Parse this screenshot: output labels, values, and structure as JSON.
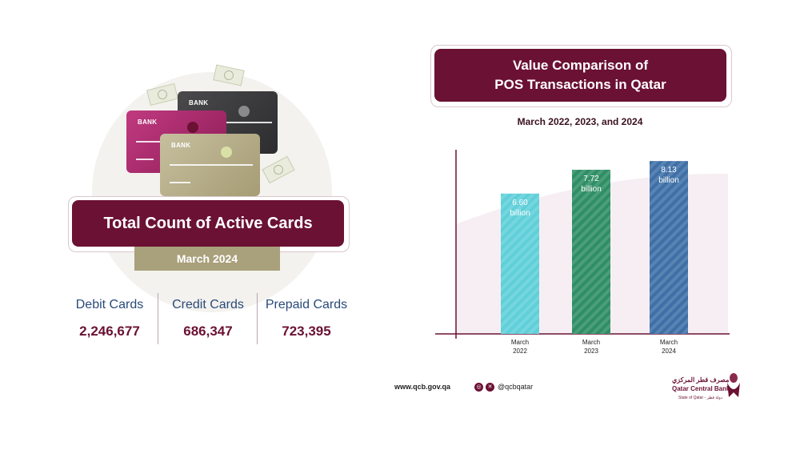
{
  "left_panel": {
    "cards": [
      {
        "label": "BANK",
        "color": "#3b3b3d"
      },
      {
        "label": "BANK",
        "color": "#a8286c"
      },
      {
        "label": "BANK",
        "color": "#b5ad8a"
      }
    ],
    "title": "Total Count of Active Cards",
    "date": "March 2024",
    "stats": [
      {
        "label": "Debit Cards",
        "value": "2,246,677"
      },
      {
        "label": "Credit Cards",
        "value": "686,347"
      },
      {
        "label": "Prepaid Cards",
        "value": "723,395"
      }
    ]
  },
  "right_panel": {
    "title_line1": "Value Comparison of",
    "title_line2": "POS Transactions in Qatar",
    "subtitle": "March 2022, 2023, and 2024"
  },
  "chart_data": {
    "type": "bar",
    "title": "Value Comparison of POS Transactions in Qatar",
    "subtitle": "March 2022, 2023, and 2024",
    "categories": [
      "March 2022",
      "March 2023",
      "March 2024"
    ],
    "category_lines": [
      [
        "March",
        "2022"
      ],
      [
        "March",
        "2023"
      ],
      [
        "March",
        "2024"
      ]
    ],
    "values": [
      6.6,
      7.72,
      8.13
    ],
    "data_labels": [
      [
        "6.60",
        "billion"
      ],
      [
        "7.72",
        "billion"
      ],
      [
        "8.13",
        "billion"
      ]
    ],
    "unit": "billion",
    "ylim": [
      0,
      9
    ],
    "colors": [
      "#5fcfd9",
      "#2e8e64",
      "#3e6fa6"
    ],
    "grid": false
  },
  "footer": {
    "url": "www.qcb.gov.qa",
    "social_icons": [
      "instagram-icon",
      "x-icon"
    ],
    "handle": "@qcbqatar",
    "logo_ar": "مصرف قطر المركزي",
    "logo_en": "Qatar Central Bank",
    "logo_sub": "State of Qatar - دولة قطر"
  },
  "colors": {
    "maroon": "#6b1133",
    "khaki": "#a9a07c",
    "navy_text": "#2a4a7a"
  }
}
